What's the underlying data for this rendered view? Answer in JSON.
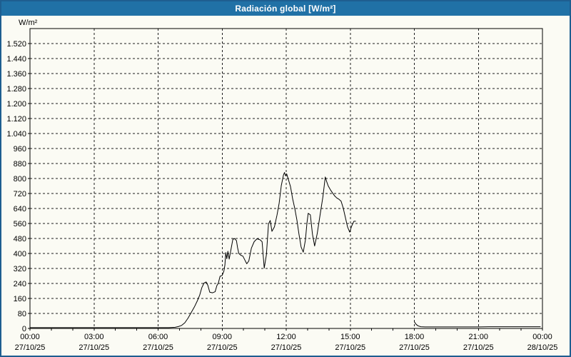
{
  "window": {
    "title": "Radiación global [W/m²]"
  },
  "colors": {
    "titlebar_bg": "#2071a6",
    "titlebar_text": "#ffffff",
    "window_border": "#1e5e90",
    "chart_background": "#fbfbf4",
    "grid": "#1c1c1c",
    "axis": "#000000",
    "line": "#000000"
  },
  "chart_data": {
    "type": "line",
    "title": "Radiación global [W/m²]",
    "unit_label": "W/m²",
    "ylim": [
      0,
      1600
    ],
    "ytick_step": 80,
    "ytick_labels": [
      "0",
      "80",
      "160",
      "240",
      "320",
      "400",
      "480",
      "560",
      "640",
      "720",
      "800",
      "880",
      "960",
      "1.040",
      "1.120",
      "1.200",
      "1.280",
      "1.360",
      "1.440",
      "1.520"
    ],
    "xlim_hours": [
      0,
      24
    ],
    "x_major_ticks_hours": [
      0,
      3,
      6,
      9,
      12,
      15,
      18,
      21,
      24
    ],
    "x_minor_tick_every_hours": 1,
    "xtick_time_labels": [
      "00:00",
      "03:00",
      "06:00",
      "09:00",
      "12:00",
      "15:00",
      "18:00",
      "21:00",
      "00:00"
    ],
    "xtick_date_labels": [
      "27/10/25",
      "27/10/25",
      "27/10/25",
      "27/10/25",
      "27/10/25",
      "27/10/25",
      "27/10/25",
      "27/10/25",
      "28/10/25"
    ],
    "grid": "dashed",
    "legend": "none",
    "series": [
      {
        "name": "Radiación global",
        "color": "#000000",
        "segments": [
          [
            [
              0,
              4
            ],
            [
              1,
              4
            ],
            [
              2,
              4
            ],
            [
              3,
              4
            ],
            [
              4,
              4
            ],
            [
              5,
              4
            ],
            [
              6,
              4
            ],
            [
              6.5,
              4
            ],
            [
              6.8,
              6
            ],
            [
              6.95,
              10
            ],
            [
              7.1,
              16
            ],
            [
              7.25,
              30
            ],
            [
              7.4,
              55
            ],
            [
              7.55,
              85
            ],
            [
              7.7,
              115
            ],
            [
              7.85,
              150
            ],
            [
              7.95,
              178
            ],
            [
              8.05,
              218
            ],
            [
              8.15,
              242
            ],
            [
              8.25,
              248
            ],
            [
              8.33,
              230
            ],
            [
              8.42,
              193
            ],
            [
              8.55,
              190
            ],
            [
              8.67,
              196
            ],
            [
              8.75,
              228
            ],
            [
              8.82,
              242
            ],
            [
              8.9,
              278
            ],
            [
              9.0,
              283
            ],
            [
              9.08,
              305
            ],
            [
              9.13,
              338
            ],
            [
              9.17,
              405
            ],
            [
              9.22,
              372
            ],
            [
              9.27,
              412
            ],
            [
              9.33,
              370
            ],
            [
              9.42,
              425
            ],
            [
              9.5,
              475
            ],
            [
              9.58,
              480
            ],
            [
              9.67,
              468
            ],
            [
              9.72,
              432
            ],
            [
              9.78,
              400
            ],
            [
              9.88,
              390
            ],
            [
              9.97,
              386
            ],
            [
              10.07,
              363
            ],
            [
              10.15,
              345
            ],
            [
              10.25,
              360
            ],
            [
              10.37,
              428
            ],
            [
              10.5,
              463
            ],
            [
              10.63,
              478
            ],
            [
              10.77,
              473
            ],
            [
              10.87,
              463
            ],
            [
              10.97,
              322
            ],
            [
              11.07,
              392
            ],
            [
              11.17,
              558
            ],
            [
              11.25,
              576
            ],
            [
              11.33,
              518
            ],
            [
              11.45,
              542
            ],
            [
              11.57,
              605
            ],
            [
              11.67,
              668
            ],
            [
              11.77,
              762
            ],
            [
              11.87,
              818
            ],
            [
              11.92,
              832
            ],
            [
              11.97,
              815
            ],
            [
              12.02,
              825
            ],
            [
              12.1,
              795
            ],
            [
              12.2,
              757
            ],
            [
              12.3,
              692
            ],
            [
              12.4,
              640
            ],
            [
              12.5,
              578
            ],
            [
              12.6,
              502
            ],
            [
              12.7,
              434
            ],
            [
              12.8,
              407
            ],
            [
              12.9,
              472
            ],
            [
              12.97,
              560
            ],
            [
              13.03,
              614
            ],
            [
              13.13,
              606
            ],
            [
              13.23,
              502
            ],
            [
              13.33,
              440
            ],
            [
              13.45,
              505
            ],
            [
              13.58,
              602
            ],
            [
              13.72,
              705
            ],
            [
              13.83,
              808
            ],
            [
              13.9,
              782
            ],
            [
              13.97,
              760
            ],
            [
              14.07,
              740
            ],
            [
              14.17,
              723
            ],
            [
              14.27,
              707
            ],
            [
              14.37,
              696
            ],
            [
              14.47,
              689
            ],
            [
              14.57,
              679
            ],
            [
              14.67,
              642
            ],
            [
              14.77,
              592
            ],
            [
              14.87,
              542
            ],
            [
              14.97,
              514
            ],
            [
              15.07,
              547
            ],
            [
              15.17,
              572
            ],
            [
              15.25,
              572
            ]
          ],
          [
            [
              18.0,
              36
            ],
            [
              18.08,
              22
            ],
            [
              18.17,
              14
            ],
            [
              18.3,
              9
            ],
            [
              18.5,
              8
            ],
            [
              19,
              8
            ],
            [
              19.5,
              8
            ],
            [
              20,
              8
            ],
            [
              20.5,
              8
            ],
            [
              21,
              8
            ],
            [
              21.5,
              9
            ],
            [
              22,
              9
            ],
            [
              22.5,
              9
            ],
            [
              23,
              9
            ],
            [
              23.5,
              9
            ],
            [
              23.9,
              9
            ]
          ]
        ]
      }
    ]
  }
}
